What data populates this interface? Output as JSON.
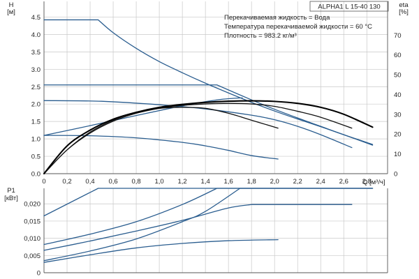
{
  "chart_data": [
    {
      "type": "line",
      "title": "ALPHA1 L 15-40 130",
      "annotations": [
        "Перекачиваемая жидкость = Вода",
        "Температура перекачиваемой жидкости = 60 °C",
        "Плотность = 983.2 кг/м³"
      ],
      "ylabel": "H",
      "yunit": "[м]",
      "y2label": "eta",
      "y2unit": "[%]",
      "xlabel": "Q",
      "xunit": "[м³/ч]",
      "xlim": [
        0,
        2.98
      ],
      "ylim": [
        0,
        4.95
      ],
      "y2lim": [
        0,
        87
      ],
      "xticks": [
        "0",
        "0,2",
        "0,4",
        "0,6",
        "0,8",
        "1,0",
        "1,2",
        "1,4",
        "1,6",
        "1,8",
        "2,0",
        "2,2",
        "2,4",
        "2,6",
        "2,8"
      ],
      "yticks": [
        "0.0",
        "0.5",
        "1.0",
        "1.5",
        "2.0",
        "2.5",
        "3.0",
        "3.5",
        "4.0",
        "4.5"
      ],
      "y2ticks": [
        "0",
        "10",
        "20",
        "30",
        "40",
        "50",
        "60",
        "70"
      ],
      "grid": true,
      "series": [
        {
          "color": "#2a5d8f",
          "width": 1.3,
          "axis": "left",
          "x": [
            0.0,
            0.47,
            0.6,
            0.8,
            1.0,
            1.2,
            1.4,
            1.6,
            1.8,
            2.0,
            2.2,
            2.4,
            2.6,
            2.85
          ],
          "y": [
            4.42,
            4.42,
            4.05,
            3.6,
            3.22,
            2.9,
            2.6,
            2.32,
            2.05,
            1.8,
            1.57,
            1.35,
            1.12,
            0.82
          ]
        },
        {
          "color": "#2a5d8f",
          "width": 1.3,
          "axis": "left",
          "x": [
            0.0,
            1.5,
            1.8,
            2.0,
            2.2,
            2.4,
            2.6,
            2.85
          ],
          "y": [
            2.55,
            2.55,
            2.12,
            1.85,
            1.6,
            1.36,
            1.12,
            0.84
          ]
        },
        {
          "color": "#2a5d8f",
          "width": 1.3,
          "axis": "left",
          "x": [
            0.0,
            0.5,
            1.0,
            1.4,
            1.8,
            2.0,
            2.2,
            2.4,
            2.67
          ],
          "y": [
            2.1,
            2.08,
            1.98,
            1.86,
            1.68,
            1.55,
            1.36,
            1.12,
            0.75
          ]
        },
        {
          "color": "#2a5d8f",
          "width": 1.3,
          "axis": "left",
          "x": [
            0.0,
            0.4,
            0.8,
            1.2,
            1.4,
            1.6,
            1.8,
            2.03
          ],
          "y": [
            1.1,
            1.09,
            1.03,
            0.9,
            0.8,
            0.67,
            0.52,
            0.42
          ]
        },
        {
          "color": "#2a5d8f",
          "width": 1.3,
          "axis": "left",
          "x": [
            0.0,
            0.4,
            0.8,
            1.2,
            1.5,
            1.72
          ],
          "y": [
            1.1,
            1.38,
            1.67,
            1.95,
            2.12,
            2.18
          ]
        },
        {
          "color": "#111111",
          "width": 1.3,
          "axis": "right",
          "x": [
            0.0,
            0.2,
            0.4,
            0.6,
            0.8,
            1.0,
            1.2,
            1.4,
            1.6,
            1.8,
            2.03
          ],
          "y": [
            0,
            12,
            21,
            27,
            31,
            33,
            33.5,
            33,
            30.5,
            27,
            23
          ]
        },
        {
          "color": "#111111",
          "width": 1.3,
          "axis": "right",
          "x": [
            0.0,
            0.2,
            0.4,
            0.6,
            0.8,
            1.0,
            1.2,
            1.4,
            1.6,
            1.8,
            2.0,
            2.2,
            2.4,
            2.67
          ],
          "y": [
            0,
            12,
            20.5,
            26.5,
            30.5,
            33,
            34.5,
            35.2,
            35.5,
            35.2,
            34,
            31.5,
            28.5,
            23
          ]
        },
        {
          "color": "#000000",
          "width": 2.1,
          "axis": "right",
          "x": [
            0.0,
            0.2,
            0.4,
            0.6,
            0.8,
            1.0,
            1.2,
            1.4,
            1.6,
            1.8,
            2.0,
            2.2,
            2.4,
            2.6,
            2.85
          ],
          "y": [
            0,
            14,
            22,
            27.5,
            31,
            33.5,
            35,
            36,
            36.6,
            36.8,
            36.5,
            35.5,
            33.5,
            30,
            23.5
          ]
        }
      ]
    },
    {
      "type": "line",
      "ylabel": "P1",
      "yunit": "[кВт]",
      "xlim": [
        0,
        2.98
      ],
      "ylim": [
        0,
        0.0245
      ],
      "yticks": [
        "0",
        "0,005",
        "0,010",
        "0,015",
        "0,020"
      ],
      "grid": true,
      "series": [
        {
          "color": "#2a5d8f",
          "width": 1.3,
          "x": [
            0.0,
            0.47,
            2.85
          ],
          "y": [
            0.0165,
            0.0245,
            0.0245
          ]
        },
        {
          "color": "#2a5d8f",
          "width": 1.3,
          "x": [
            0.0,
            0.4,
            0.8,
            1.2,
            1.5,
            2.85
          ],
          "y": [
            0.0082,
            0.0112,
            0.0148,
            0.0198,
            0.0245,
            0.0245
          ]
        },
        {
          "color": "#2a5d8f",
          "width": 1.3,
          "x": [
            0.0,
            0.4,
            0.8,
            1.2,
            1.6,
            1.8,
            2.67
          ],
          "y": [
            0.0065,
            0.0092,
            0.0121,
            0.0152,
            0.0188,
            0.0198,
            0.0198
          ]
        },
        {
          "color": "#2a5d8f",
          "width": 1.3,
          "x": [
            0.0,
            0.4,
            0.8,
            1.2,
            1.4,
            1.7,
            2.85
          ],
          "y": [
            0.0035,
            0.0063,
            0.0098,
            0.0148,
            0.0178,
            0.0245,
            0.0245
          ]
        },
        {
          "color": "#2a5d8f",
          "width": 1.3,
          "x": [
            0.0,
            0.4,
            0.8,
            1.2,
            1.6,
            2.03
          ],
          "y": [
            0.003,
            0.0052,
            0.0072,
            0.0085,
            0.0093,
            0.0096
          ]
        }
      ]
    }
  ]
}
